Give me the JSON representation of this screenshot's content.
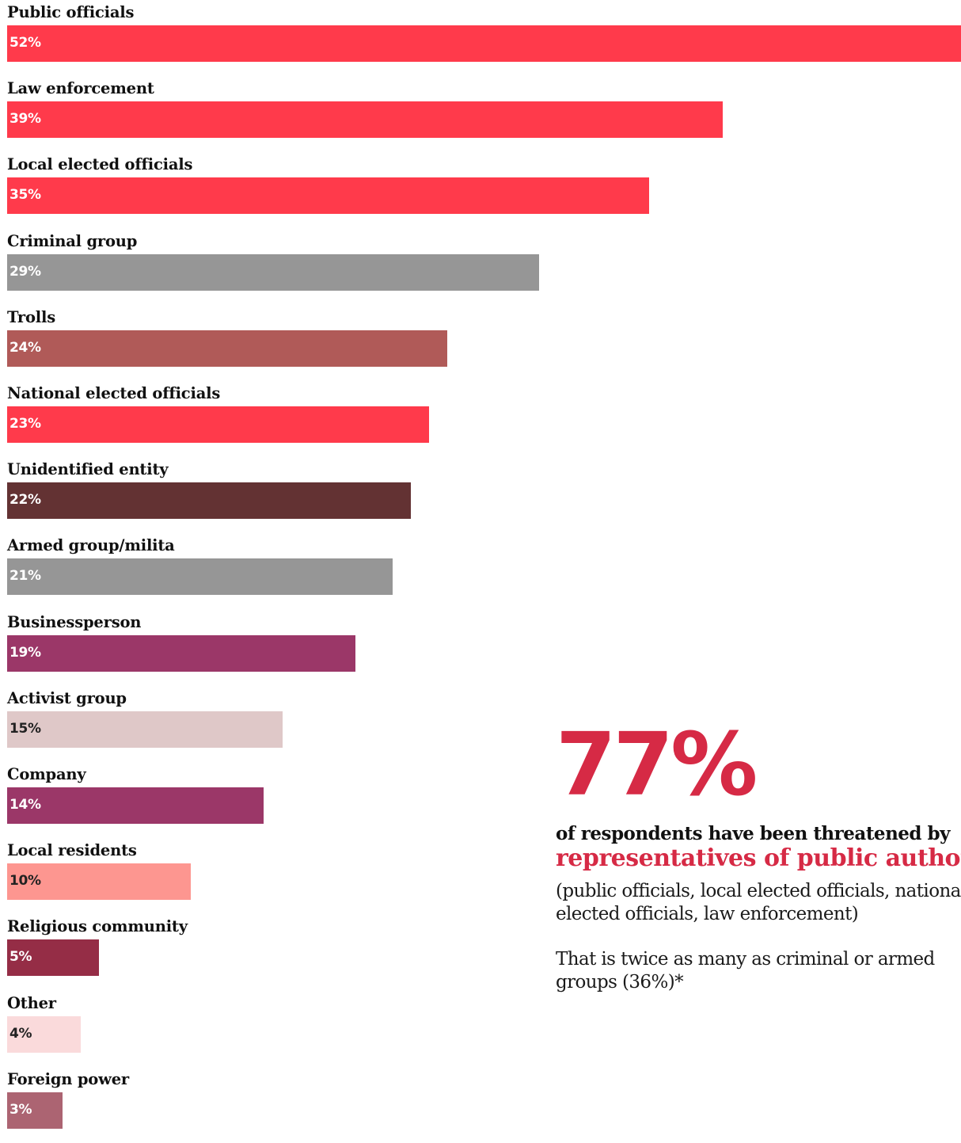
{
  "chart_data": {
    "type": "bar",
    "orientation": "horizontal",
    "categories": [
      "Public officials",
      "Law enforcement",
      "Local elected officials",
      "Criminal group",
      "Trolls",
      "National elected officials",
      "Unidentified entity",
      "Armed group/milita",
      "Businessperson",
      "Activist group",
      "Company",
      "Local residents",
      "Religious community",
      "Other",
      "Foreign power"
    ],
    "values": [
      52,
      39,
      35,
      29,
      24,
      23,
      22,
      21,
      19,
      15,
      14,
      10,
      5,
      4,
      3
    ],
    "value_labels": [
      "52%",
      "39%",
      "35%",
      "29%",
      "24%",
      "23%",
      "22%",
      "21%",
      "19%",
      "15%",
      "14%",
      "10%",
      "5%",
      "4%",
      "3%"
    ],
    "colors": [
      "#ff3a4b",
      "#ff3a4b",
      "#ff3a4b",
      "#969696",
      "#b05a58",
      "#ff3a4b",
      "#633233",
      "#969696",
      "#9b3768",
      "#dfc8c8",
      "#9b3768",
      "#fd9690",
      "#952d46",
      "#fadadb",
      "#ac6472"
    ],
    "label_colors": [
      "#ffffff",
      "#ffffff",
      "#ffffff",
      "#ffffff",
      "#ffffff",
      "#ffffff",
      "#ffffff",
      "#ffffff",
      "#ffffff",
      "#222222",
      "#ffffff",
      "#222222",
      "#ffffff",
      "#222222",
      "#ffffff"
    ],
    "xlim": [
      0,
      52
    ],
    "title": "",
    "xlabel": "",
    "ylabel": "",
    "grid": false
  },
  "callout": {
    "big_number": "77%",
    "line1": "of respondents have been threatened by",
    "line2": "representatives of public authorities",
    "paren_text": "(public officials, local elected officials, national elected officials, law enforcement)",
    "twice_text": "That is twice as many as criminal or armed groups (36%)*",
    "accent_color": "#d62a45"
  }
}
